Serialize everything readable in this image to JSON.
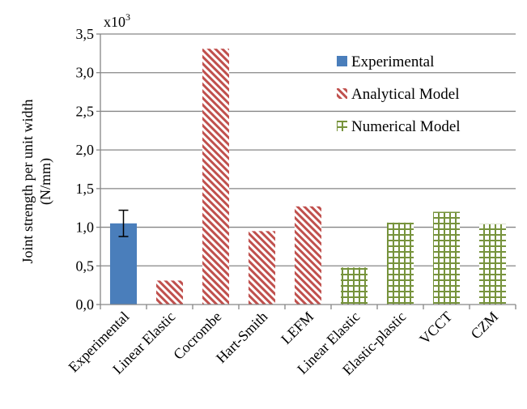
{
  "chart_data": {
    "type": "bar",
    "scale_note": {
      "base": "x10",
      "exponent": "3"
    },
    "ylabel_lines": [
      "Joint strength per unit width",
      "(N/mm)"
    ],
    "xlabel": "",
    "ylim": [
      0,
      3.5
    ],
    "yticks": [
      "0,0",
      "0,5",
      "1,0",
      "1,5",
      "2,0",
      "2,5",
      "3,0",
      "3,5"
    ],
    "grid": true,
    "legend_position": "top-right",
    "categories": [
      "Experimental",
      "Linear Elastic",
      "Cocrombe",
      "Hart-Smith",
      "LEFM",
      "Linear Elastic",
      "Elastic-plastic",
      "VCCT",
      "CZM"
    ],
    "series": [
      {
        "name": "Experimental",
        "color": "#4a7ebb",
        "fill": "solid",
        "values": [
          1.05,
          null,
          null,
          null,
          null,
          null,
          null,
          null,
          null
        ],
        "error_low": [
          0.88
        ],
        "error_high": [
          1.22
        ]
      },
      {
        "name": "Analytical Model",
        "color": "#c0504d",
        "fill": "diagonal-hatch",
        "values": [
          null,
          0.31,
          3.31,
          0.95,
          1.27,
          null,
          null,
          null,
          null
        ]
      },
      {
        "name": "Numerical Model",
        "color": "#77933c",
        "fill": "cross-grid",
        "values": [
          null,
          null,
          null,
          null,
          null,
          0.48,
          1.06,
          1.2,
          1.04
        ]
      }
    ]
  }
}
